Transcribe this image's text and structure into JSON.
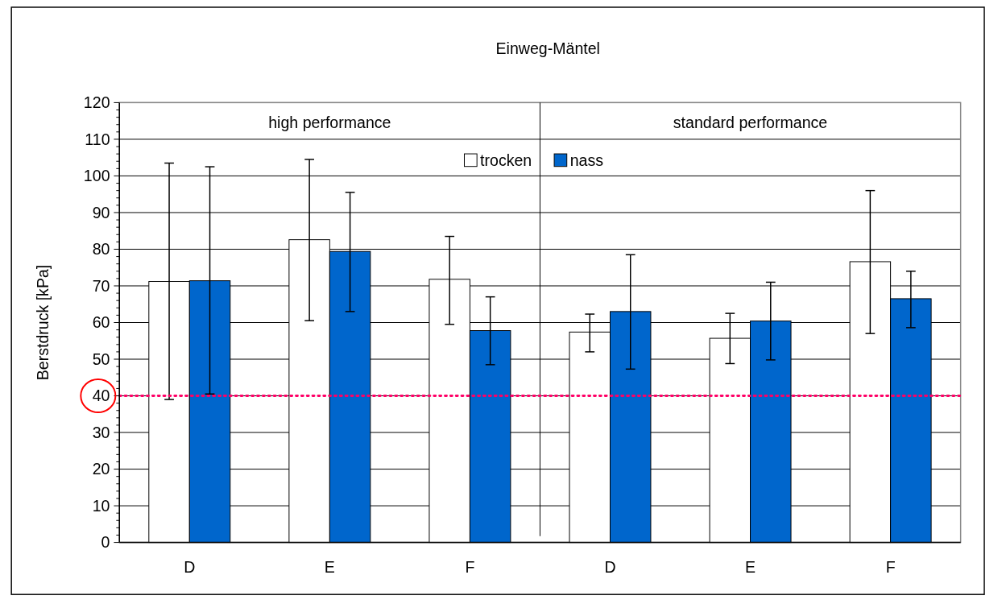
{
  "chart_data": {
    "type": "bar",
    "title": "Einweg-Mäntel",
    "ylabel": "Berstdruck [kPa]",
    "categories": [
      "D",
      "E",
      "F",
      "D",
      "E",
      "F"
    ],
    "series": [
      {
        "name": "trocken",
        "color": "#ffffff",
        "values": [
          71.2,
          82.6,
          71.8,
          57.4,
          55.7,
          76.6
        ],
        "errors": [
          [
            39,
            103.5
          ],
          [
            60.5,
            104.5
          ],
          [
            59.5,
            83.5
          ],
          [
            52,
            62.3
          ],
          [
            48.8,
            62.5
          ],
          [
            57,
            96
          ]
        ]
      },
      {
        "name": "nass",
        "color": "#0066cc",
        "values": [
          71.4,
          79.4,
          57.8,
          63,
          60.4,
          66.5
        ],
        "errors": [
          [
            40.5,
            102.5
          ],
          [
            63,
            95.5
          ],
          [
            48.5,
            67
          ],
          [
            47.3,
            78.5
          ],
          [
            49.8,
            71
          ],
          [
            58.6,
            74
          ]
        ]
      }
    ],
    "annotations": [
      "high performance",
      "standard performance"
    ],
    "ylim": [
      0,
      120
    ],
    "yticks": [
      0,
      10,
      20,
      30,
      40,
      50,
      60,
      70,
      80,
      90,
      100,
      110,
      120
    ],
    "ref_lines": [
      {
        "axis": "y",
        "value": 40,
        "color": "#ff0066",
        "line_style": "dotted"
      }
    ],
    "grid": "y",
    "legend": "top"
  }
}
